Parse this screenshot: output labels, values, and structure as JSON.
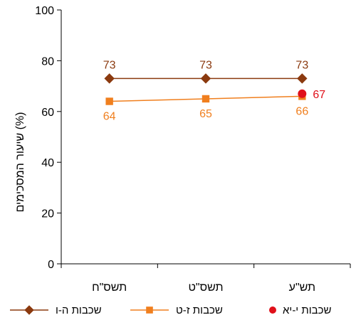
{
  "chart_data": {
    "type": "line",
    "title": "",
    "xlabel": "",
    "ylabel": "שיעור המסכימים (%)",
    "ylim": [
      0,
      100
    ],
    "yticks": [
      0,
      20,
      40,
      60,
      80,
      100
    ],
    "categories": [
      "תשס\"ח",
      "תשס\"ט",
      "תש\"ע"
    ],
    "grid": false,
    "legend": "bottom",
    "series": [
      {
        "name": "שכבות ה-ו",
        "values": [
          73,
          73,
          73
        ],
        "color": "#8B3A0F",
        "marker": "diamond",
        "labels": [
          "73",
          "73",
          "73"
        ],
        "label_position": "above"
      },
      {
        "name": "שכבות ז-ט",
        "values": [
          64,
          65,
          66
        ],
        "color": "#F07F1E",
        "marker": "square",
        "labels": [
          "64",
          "65",
          "66"
        ],
        "label_position": "below"
      },
      {
        "name": "שכבות י-יא",
        "values": [
          null,
          null,
          67
        ],
        "color": "#E0101A",
        "marker": "circle",
        "labels": [
          "",
          "",
          "67"
        ],
        "label_position": "right"
      }
    ]
  }
}
